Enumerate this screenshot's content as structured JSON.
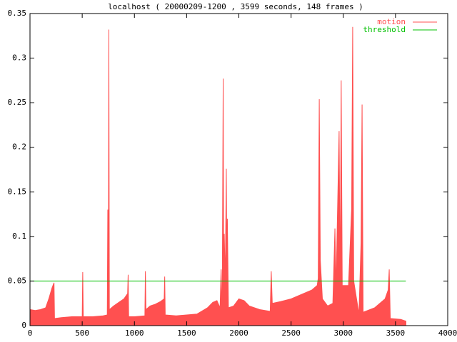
{
  "chart_data": {
    "type": "area",
    "title": "localhost ( 20000209-1200 , 3599 seconds, 148 frames )",
    "x": [
      0,
      50,
      100,
      150,
      180,
      210,
      230,
      235,
      300,
      400,
      500,
      505,
      510,
      600,
      700,
      740,
      745,
      750,
      755,
      760,
      800,
      850,
      900,
      935,
      940,
      945,
      1000,
      1100,
      1105,
      1110,
      1150,
      1200,
      1250,
      1285,
      1290,
      1295,
      1400,
      1500,
      1600,
      1700,
      1750,
      1790,
      1820,
      1830,
      1840,
      1850,
      1855,
      1860,
      1870,
      1880,
      1885,
      1890,
      1900,
      1950,
      2000,
      2050,
      2100,
      2200,
      2300,
      2310,
      2320,
      2400,
      2500,
      2600,
      2700,
      2750,
      2760,
      2770,
      2780,
      2800,
      2850,
      2900,
      2920,
      2930,
      2960,
      2970,
      2980,
      2990,
      3050,
      3080,
      3090,
      3100,
      3150,
      3170,
      3180,
      3190,
      3300,
      3400,
      3430,
      3440,
      3450,
      3550,
      3600
    ],
    "series": [
      {
        "name": "motion",
        "color": "#ff5050",
        "style": "area",
        "values": [
          0.018,
          0.017,
          0.018,
          0.02,
          0.03,
          0.042,
          0.048,
          0.008,
          0.009,
          0.01,
          0.01,
          0.06,
          0.01,
          0.01,
          0.011,
          0.012,
          0.13,
          0.02,
          0.332,
          0.018,
          0.022,
          0.026,
          0.03,
          0.036,
          0.057,
          0.01,
          0.01,
          0.011,
          0.061,
          0.018,
          0.022,
          0.024,
          0.027,
          0.03,
          0.055,
          0.012,
          0.011,
          0.012,
          0.013,
          0.02,
          0.026,
          0.028,
          0.02,
          0.063,
          0.005,
          0.277,
          0.03,
          0.103,
          0.05,
          0.176,
          0.057,
          0.12,
          0.02,
          0.022,
          0.03,
          0.028,
          0.022,
          0.018,
          0.016,
          0.061,
          0.025,
          0.027,
          0.03,
          0.035,
          0.04,
          0.045,
          0.053,
          0.254,
          0.073,
          0.03,
          0.022,
          0.025,
          0.109,
          0.04,
          0.218,
          0.04,
          0.275,
          0.045,
          0.045,
          0.131,
          0.335,
          0.05,
          0.013,
          0.093,
          0.248,
          0.015,
          0.02,
          0.03,
          0.04,
          0.063,
          0.008,
          0.007,
          0.005
        ]
      },
      {
        "name": "threshold",
        "color": "#00c000",
        "style": "line",
        "x": [
          0,
          3599
        ],
        "values": [
          0.05,
          0.05
        ]
      }
    ],
    "xlim": [
      0,
      4000
    ],
    "xticks": [
      0,
      500,
      1000,
      1500,
      2000,
      2500,
      3000,
      3500,
      4000
    ],
    "ylim": [
      0,
      0.35
    ],
    "yticks": [
      0,
      0.05,
      0.1,
      0.15,
      0.2,
      0.25,
      0.3,
      0.35
    ],
    "legend": "upper right"
  }
}
